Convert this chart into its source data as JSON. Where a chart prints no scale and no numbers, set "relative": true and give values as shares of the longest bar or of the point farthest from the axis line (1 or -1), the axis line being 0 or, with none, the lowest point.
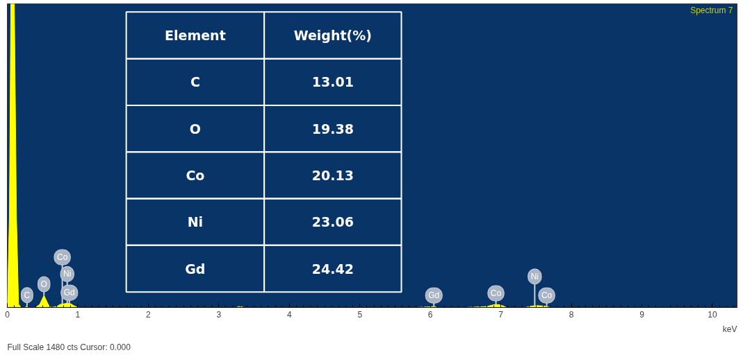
{
  "chart_data": {
    "type": "area",
    "title": "Spectrum 7",
    "xlabel": "keV",
    "relative": true,
    "xlim": [
      0,
      10.35
    ],
    "xticks": [
      0,
      1,
      2,
      3,
      4,
      5,
      6,
      7,
      8,
      9,
      10
    ],
    "x": [
      0,
      0.03,
      0.05,
      0.1,
      0.13,
      0.16,
      0.2,
      0.25,
      0.28,
      0.31,
      0.4,
      0.46,
      0.52,
      0.58,
      0.62,
      0.7,
      0.75,
      0.8,
      0.85,
      0.9,
      0.95,
      1.0,
      1.5,
      2.0,
      3.25,
      3.3,
      3.35,
      4.0,
      5.0,
      5.8,
      6.0,
      6.05,
      6.1,
      6.5,
      6.8,
      6.88,
      6.93,
      7.0,
      7.08,
      7.35,
      7.42,
      7.5,
      7.6,
      7.66,
      7.7,
      8.0,
      9.0,
      10.35
    ],
    "series": [
      {
        "color": "#ffff00",
        "values": [
          0,
          0.3,
          1,
          1,
          0.3,
          0.01,
          0,
          0,
          0.004,
          0,
          0,
          0.01,
          0.04,
          0.01,
          0,
          0.003,
          0.01,
          0.012,
          0.014,
          0.012,
          0.005,
          0,
          0,
          0,
          0,
          0.004,
          0,
          0,
          0,
          0,
          0.002,
          0.003,
          0,
          0,
          0.003,
          0.008,
          0.01,
          0.008,
          0,
          0,
          0.004,
          0.006,
          0.005,
          0.002,
          0,
          0,
          0,
          0
        ]
      }
    ],
    "annotations": [
      {
        "text": "C",
        "x": 0.28,
        "y": 0.004
      },
      {
        "text": "O",
        "x": 0.52,
        "y": 0.04
      },
      {
        "text": "Co",
        "x": 0.78,
        "y": 0.01
      },
      {
        "text": "Ni",
        "x": 0.85,
        "y": 0.014
      },
      {
        "text": "Gd",
        "x": 0.88,
        "y": 0.012
      },
      {
        "text": "Gd",
        "x": 6.05,
        "y": 0.003
      },
      {
        "text": "Co",
        "x": 6.93,
        "y": 0.01
      },
      {
        "text": "Ni",
        "x": 7.48,
        "y": 0.006
      },
      {
        "text": "Co",
        "x": 7.65,
        "y": 0.003
      },
      "Full Scale 1480 cts Cursor: 0.000",
      "Element",
      "Weight(%)",
      "C",
      "13.01",
      "O",
      "19.38",
      "Co",
      "20.13",
      "Ni",
      "23.06",
      "Gd",
      "24.42"
    ]
  }
}
